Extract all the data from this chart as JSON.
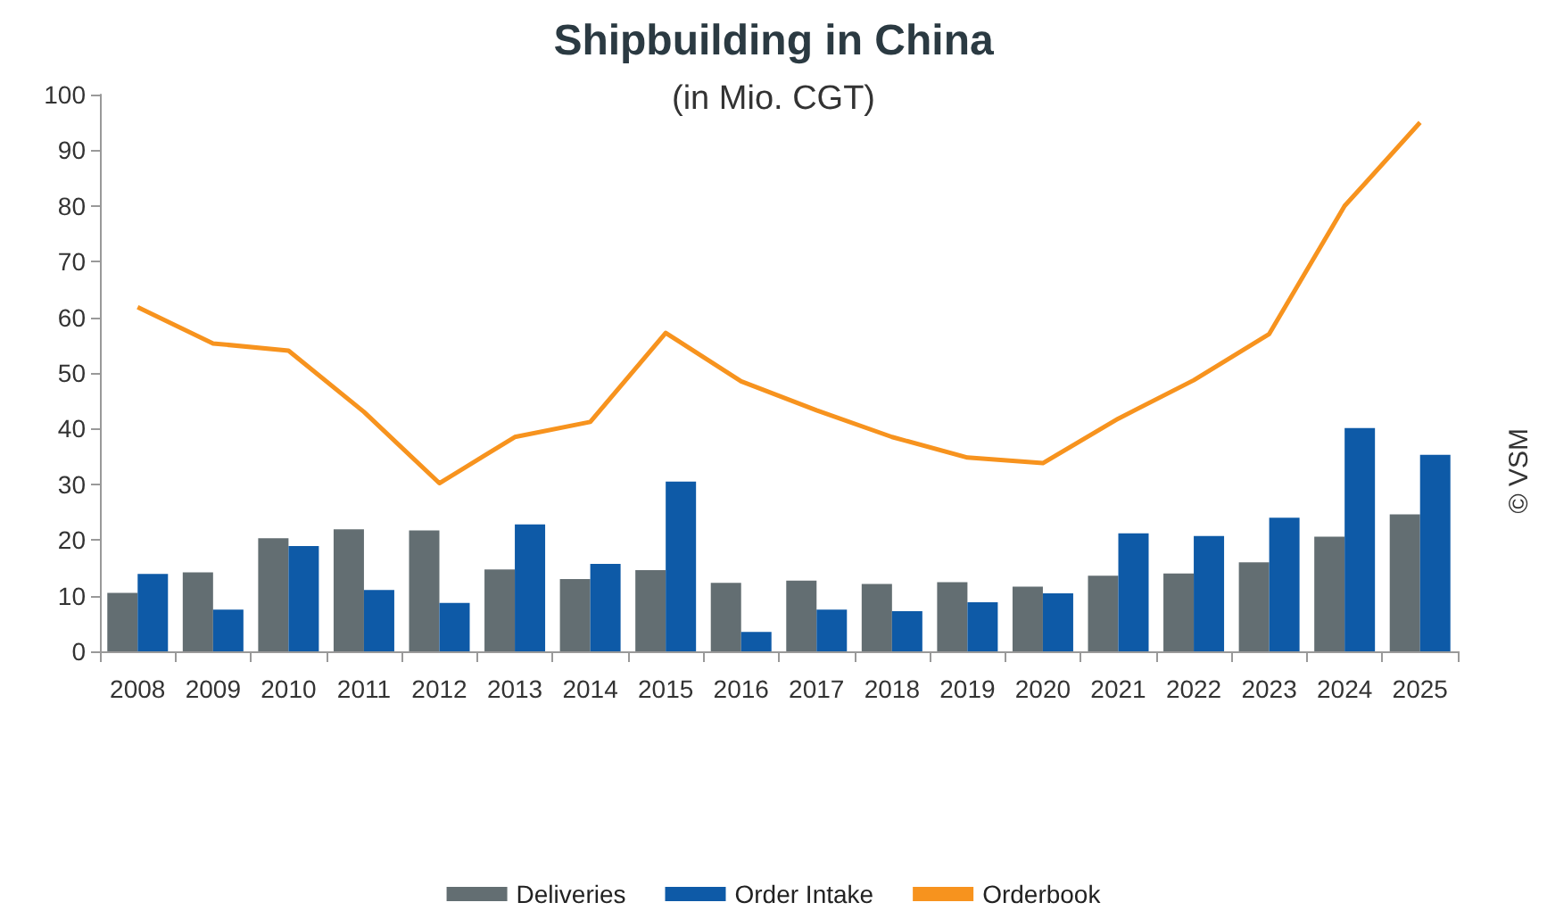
{
  "chart_data": {
    "type": "bar",
    "title": "Shipbuilding in China",
    "subtitle": "(in Mio. CGT)",
    "categories": [
      "2008",
      "2009",
      "2010",
      "2011",
      "2012",
      "2013",
      "2014",
      "2015",
      "2016",
      "2017",
      "2018",
      "2019",
      "2020",
      "2021",
      "2022",
      "2023",
      "2024",
      "2025"
    ],
    "series": [
      {
        "name": "Deliveries",
        "color": "#636e72",
        "values": [
          10.5,
          14.2,
          20.3,
          21.9,
          21.7,
          14.7,
          13.0,
          14.6,
          12.3,
          12.7,
          12.1,
          12.4,
          11.6,
          13.6,
          14.0,
          16.0,
          20.6,
          24.6
        ]
      },
      {
        "name": "Order Intake",
        "color": "#0e5aa7",
        "values": [
          13.9,
          7.5,
          18.9,
          11.0,
          8.7,
          22.8,
          15.7,
          30.5,
          3.5,
          7.5,
          7.2,
          8.8,
          10.4,
          21.2,
          20.7,
          24.0,
          40.1,
          35.3
        ]
      },
      {
        "name": "Orderbook",
        "type": "line",
        "color": "#f7931e",
        "values": [
          61.8,
          55.3,
          54.0,
          43.0,
          30.2,
          38.5,
          41.2,
          57.2,
          48.5,
          43.3,
          38.5,
          34.8,
          33.8,
          41.8,
          48.7,
          57.0,
          80.0,
          95.0
        ]
      }
    ],
    "ylim": [
      0,
      100
    ],
    "yticks": [
      0,
      10,
      20,
      30,
      40,
      50,
      60,
      70,
      80,
      90,
      100
    ],
    "annotations": [
      "© VSM"
    ],
    "grid": false,
    "legend": "bottom",
    "marker": "none"
  }
}
